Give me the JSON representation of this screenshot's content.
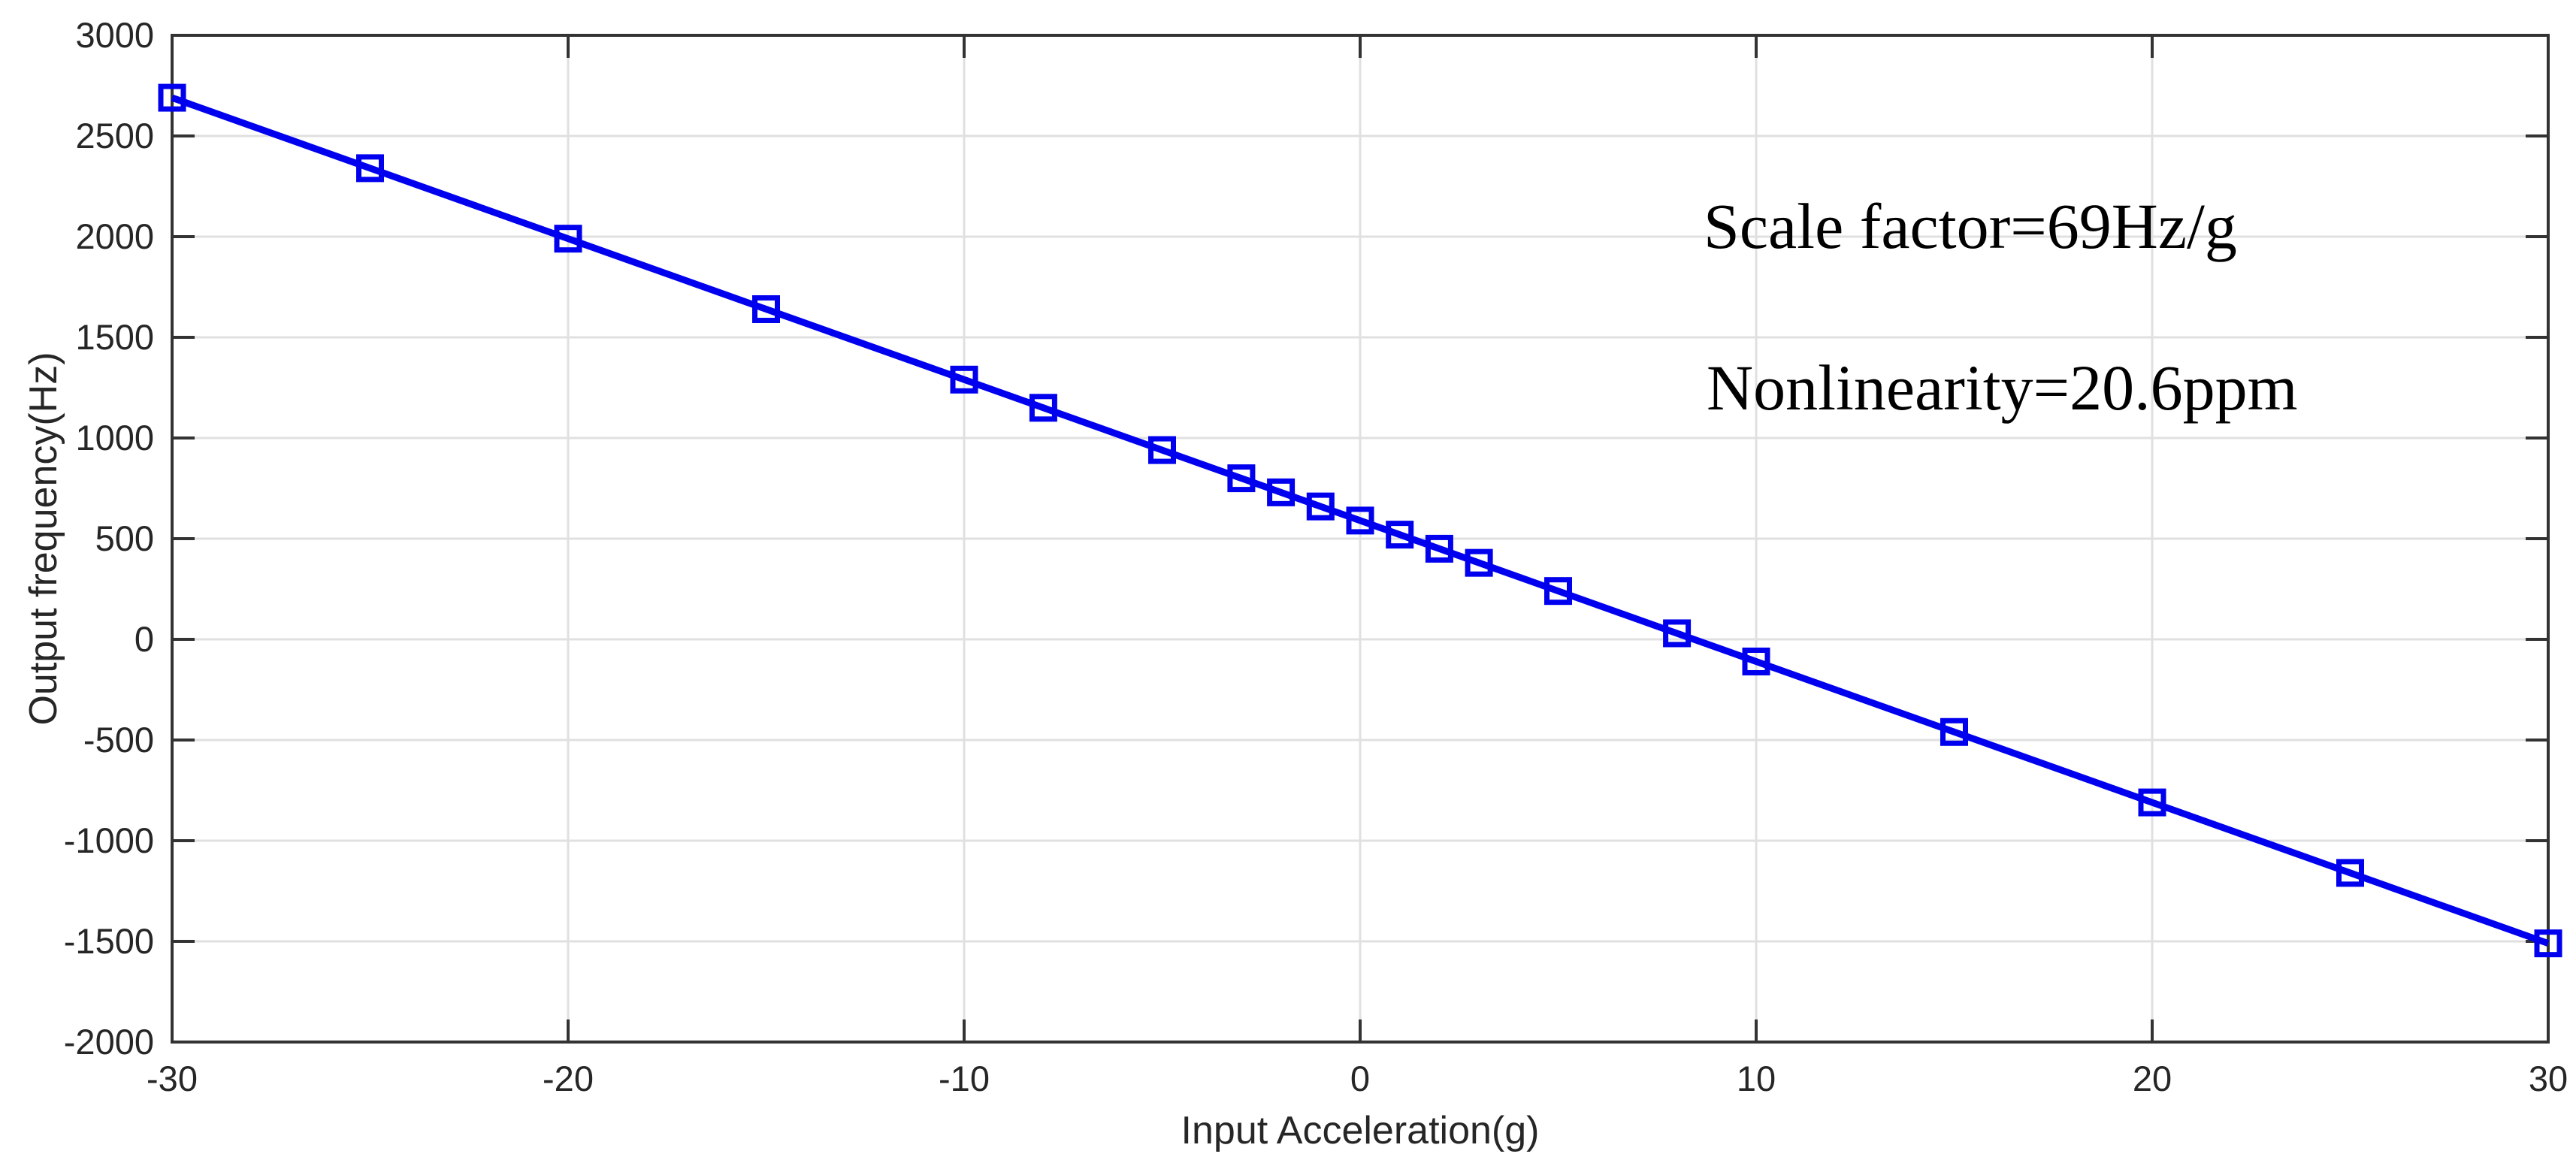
{
  "chart_data": {
    "type": "line",
    "title": "",
    "xlabel": "Input Acceleration(g)",
    "ylabel": "Output frequency(Hz)",
    "x": [
      -30,
      -25,
      -20,
      -15,
      -10,
      -8,
      -5,
      -3,
      -2,
      -1,
      0,
      1,
      2,
      3,
      5,
      8,
      10,
      15,
      20,
      25,
      30
    ],
    "y": [
      2690,
      2340,
      1990,
      1640,
      1290,
      1150,
      940,
      800,
      730,
      660,
      590,
      520,
      450,
      380,
      240,
      30,
      -110,
      -460,
      -810,
      -1160,
      -1510
    ],
    "xlim": [
      -30,
      30
    ],
    "ylim": [
      -2000,
      3000
    ],
    "x_ticks": [
      -30,
      -20,
      -10,
      0,
      10,
      20,
      30
    ],
    "y_ticks": [
      -2000,
      -1500,
      -1000,
      -500,
      0,
      500,
      1000,
      1500,
      2000,
      2500,
      3000
    ],
    "grid": true,
    "legend": "none",
    "marker": "open-square",
    "colors": {
      "line": "#0000EE",
      "axis": "#333333",
      "tick_text": "#262626",
      "grid": "#E0E0E0",
      "background": "#FFFFFF"
    },
    "annotations": [
      {
        "text": "Scale factor=69Hz/g"
      },
      {
        "text": "Nonlinearity=20.6ppm"
      }
    ]
  }
}
